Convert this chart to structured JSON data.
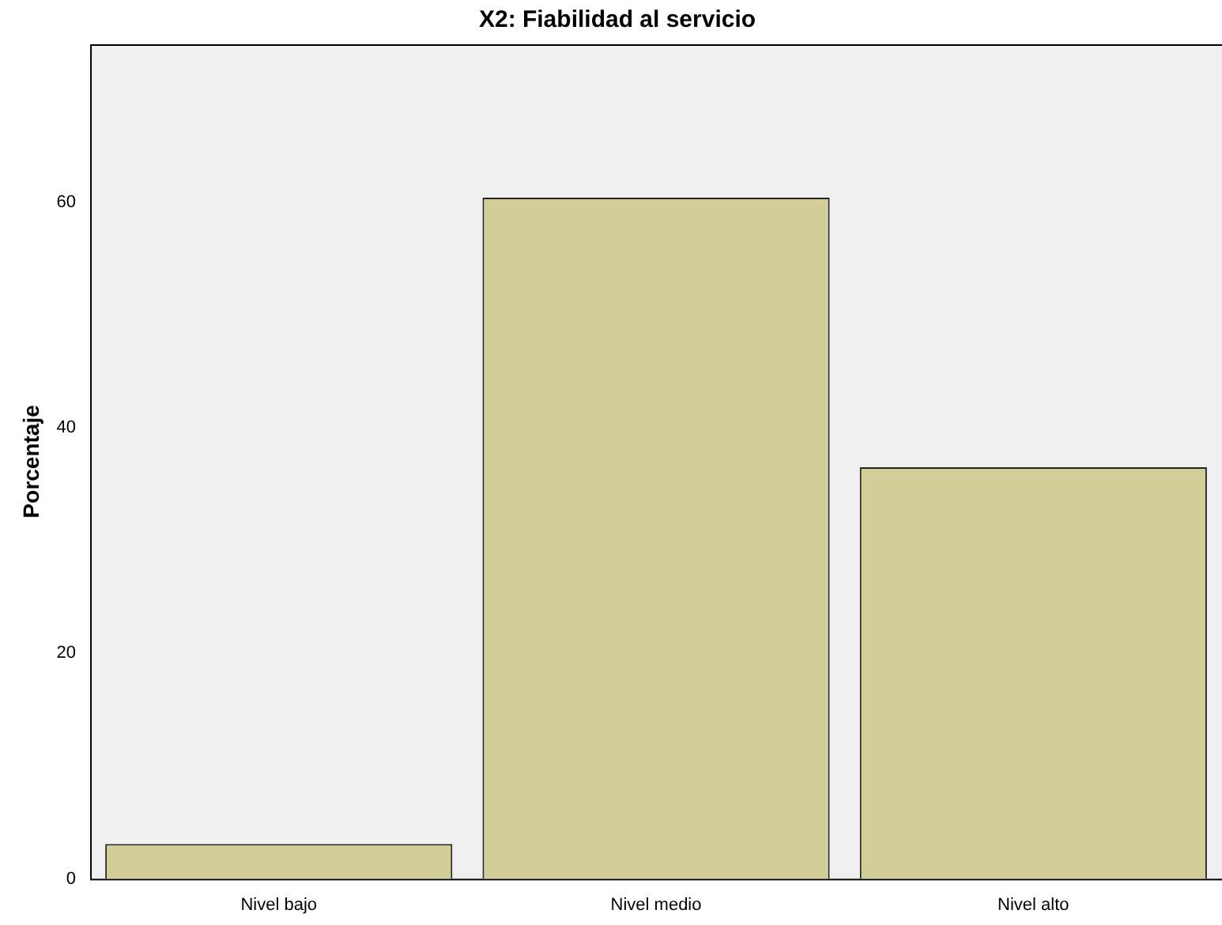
{
  "chart_data": {
    "type": "bar",
    "title": "X2: Fiabilidad al servicio",
    "ylabel": "Porcentaje",
    "categories": [
      "Nivel bajo",
      "Nivel medio",
      "Nivel alto"
    ],
    "values": [
      3.1,
      60.4,
      36.5
    ],
    "color": "#d3ce97",
    "ylim": [
      0,
      74
    ],
    "yticks": [
      0,
      20,
      40,
      60
    ],
    "grid": false
  }
}
